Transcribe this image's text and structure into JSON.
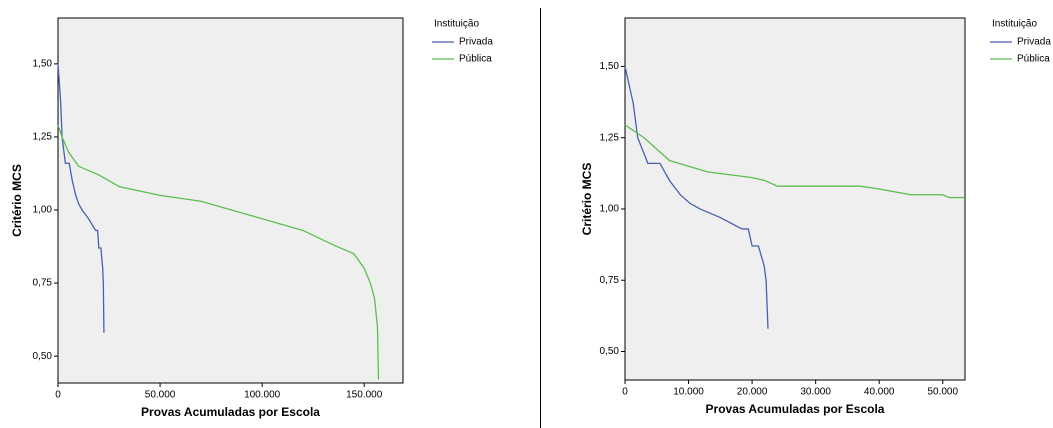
{
  "chart_data": [
    {
      "type": "line",
      "x_label": "Provas Acumuladas por Escola",
      "y_label": "Critério MCS",
      "legend_title": "Instituição",
      "xlim": [
        0,
        169000
      ],
      "ylim": [
        0.408,
        1.657
      ],
      "xticks": [
        0,
        {
          "value": 50000,
          "label": "50.000"
        },
        {
          "value": 100000,
          "label": "100.000"
        },
        {
          "value": 150000,
          "label": "150.000"
        }
      ],
      "yticks": [
        {
          "value": 0.5,
          "label": "0,50"
        },
        {
          "value": 0.75,
          "label": "0,75"
        },
        {
          "value": 1.0,
          "label": "1,00"
        },
        {
          "value": 1.25,
          "label": "1,25"
        },
        {
          "value": 1.5,
          "label": "1,50"
        }
      ],
      "series": [
        {
          "name": "Privada",
          "color": "#4a5fb0",
          "x": [
            0,
            1300,
            2000,
            3600,
            5500,
            7000,
            8700,
            10200,
            11800,
            15000,
            18400,
            19400,
            20000,
            21000,
            21900,
            22200,
            22500
          ],
          "values": [
            1.5,
            1.37,
            1.25,
            1.16,
            1.16,
            1.1,
            1.05,
            1.02,
            1.0,
            0.97,
            0.93,
            0.93,
            0.87,
            0.87,
            0.8,
            0.75,
            0.58
          ]
        },
        {
          "name": "Pública",
          "color": "#5cbf4f",
          "x": [
            0,
            2000,
            5000,
            10000,
            20000,
            30000,
            50000,
            70000,
            85000,
            100000,
            120000,
            135000,
            145000,
            150000,
            153000,
            155000,
            156500,
            157000
          ],
          "values": [
            1.29,
            1.25,
            1.2,
            1.15,
            1.12,
            1.08,
            1.05,
            1.03,
            1.0,
            0.97,
            0.93,
            0.88,
            0.85,
            0.8,
            0.75,
            0.7,
            0.6,
            0.42
          ]
        }
      ]
    },
    {
      "type": "line",
      "x_label": "Provas Acumuladas por Escola",
      "y_label": "Critério MCS",
      "legend_title": "Instituição",
      "xlim": [
        0,
        53500
      ],
      "ylim": [
        0.4,
        1.67
      ],
      "xticks": [
        0,
        {
          "value": 10000,
          "label": "10.000"
        },
        {
          "value": 20000,
          "label": "20.000"
        },
        {
          "value": 30000,
          "label": "30.000"
        },
        {
          "value": 40000,
          "label": "40.000"
        },
        {
          "value": 50000,
          "label": "50.000"
        }
      ],
      "yticks": [
        {
          "value": 0.5,
          "label": "0,50"
        },
        {
          "value": 0.75,
          "label": "0,75"
        },
        {
          "value": 1.0,
          "label": "1,00"
        },
        {
          "value": 1.25,
          "label": "1,25"
        },
        {
          "value": 1.5,
          "label": "1,50"
        }
      ],
      "series": [
        {
          "name": "Privada",
          "color": "#4a5fb0",
          "x": [
            0,
            1300,
            2000,
            3600,
            5500,
            7000,
            8700,
            10200,
            11800,
            15000,
            18400,
            19400,
            20000,
            21000,
            21900,
            22200,
            22500
          ],
          "values": [
            1.5,
            1.37,
            1.25,
            1.16,
            1.16,
            1.1,
            1.05,
            1.02,
            1.0,
            0.97,
            0.93,
            0.93,
            0.87,
            0.87,
            0.8,
            0.75,
            0.58
          ]
        },
        {
          "name": "Pública",
          "color": "#5cbf4f",
          "x": [
            0,
            3000,
            5000,
            7000,
            10000,
            13000,
            20000,
            22000,
            24000,
            37000,
            40000,
            45000,
            50000,
            51000,
            53500
          ],
          "values": [
            1.295,
            1.25,
            1.21,
            1.17,
            1.15,
            1.13,
            1.11,
            1.1,
            1.08,
            1.08,
            1.07,
            1.05,
            1.05,
            1.04,
            1.04
          ]
        }
      ]
    }
  ]
}
